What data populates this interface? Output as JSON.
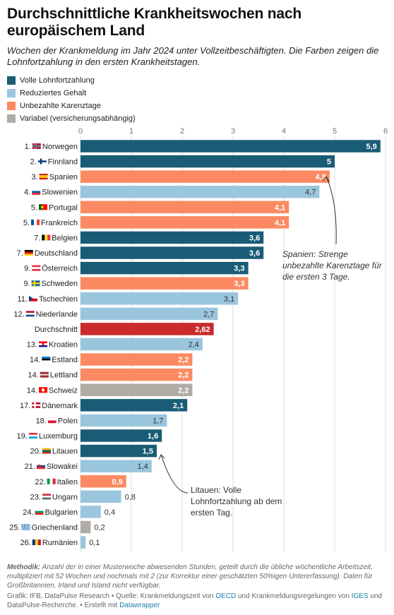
{
  "title": "Durchschnittliche Krankheitswochen nach europäischem Land",
  "subtitle": "Wochen der Krankmeldung im Jahr 2024 unter Vollzeitbeschäftigten. Die Farben zeigen die Lohnfortzahlung in den ersten Krankheitstagen.",
  "legend": [
    {
      "label": "Volle Lohnfortzahlung",
      "color": "#1a5c75"
    },
    {
      "label": "Reduziertes Gehalt",
      "color": "#9ac6dd"
    },
    {
      "label": "Unbezahlte Karenztage",
      "color": "#fb8a62"
    },
    {
      "label": "Variabel (versicherungsabhängig)",
      "color": "#b0aba5"
    }
  ],
  "chart_data": {
    "type": "bar",
    "orientation": "horizontal",
    "xlim": [
      0,
      6
    ],
    "x_ticks": [
      "0",
      "1",
      "2",
      "3",
      "4",
      "5",
      "6"
    ],
    "categories": [
      "1. Norwegen",
      "2. Finnland",
      "3. Spanien",
      "4. Slowenien",
      "5. Portugal",
      "5. Frankreich",
      "7. Belgien",
      "7. Deutschland",
      "9. Österreich",
      "9. Schweden",
      "11. Tschechien",
      "12. Niederlande",
      "Durchschnitt",
      "13. Kroatien",
      "14. Estland",
      "14. Lettland",
      "14. Schweiz",
      "17. Dänemark",
      "18. Polen",
      "19. Luxemburg",
      "20. Litauen",
      "21. Slowakei",
      "22. Italien",
      "23. Ungarn",
      "24. Bulgarien",
      "25. Griechenland",
      "26. Rumänien"
    ],
    "values": [
      5.9,
      5,
      4.9,
      4.7,
      4.1,
      4.1,
      3.6,
      3.6,
      3.3,
      3.3,
      3.1,
      2.7,
      2.62,
      2.4,
      2.2,
      2.2,
      2.2,
      2.1,
      1.7,
      1.6,
      1.5,
      1.4,
      0.9,
      0.8,
      0.4,
      0.2,
      0.1
    ],
    "value_labels": [
      "5,9",
      "5",
      "4,9",
      "4,7",
      "4,1",
      "4,1",
      "3,6",
      "3,6",
      "3,3",
      "3,3",
      "3,1",
      "2,7",
      "2,62",
      "2,4",
      "2,2",
      "2,2",
      "2,2",
      "2,1",
      "1,7",
      "1,6",
      "1,5",
      "1,4",
      "0,9",
      "0,8",
      "0,4",
      "0,2",
      "0,1"
    ],
    "pay_type": [
      "full",
      "full",
      "unpaid",
      "reduced",
      "unpaid",
      "unpaid",
      "full",
      "full",
      "full",
      "unpaid",
      "reduced",
      "reduced",
      "average",
      "reduced",
      "unpaid",
      "unpaid",
      "variable",
      "full",
      "reduced",
      "full",
      "full",
      "reduced",
      "unpaid",
      "reduced",
      "reduced",
      "variable",
      "reduced"
    ],
    "flags": [
      "norway",
      "finland",
      "spain",
      "slovenia",
      "portugal",
      "france",
      "belgium",
      "germany",
      "austria",
      "sweden",
      "czechia",
      "netherlands",
      "",
      "croatia",
      "estonia",
      "latvia",
      "switzerland",
      "denmark",
      "poland",
      "luxembourg",
      "lithuania",
      "slovakia",
      "italy",
      "hungary",
      "bulgaria",
      "greece",
      "romania"
    ],
    "colors": {
      "full": "#1a5c75",
      "reduced": "#9ac6dd",
      "unpaid": "#fb8a62",
      "variable": "#b0aba5",
      "average": "#c92a2a"
    },
    "grid": true,
    "annotations": [
      {
        "text": "Spanien: Strenge unbezahlte Karenztage für die ersten 3 Tage.",
        "target": "3. Spanien"
      },
      {
        "text": "Litauen: Volle Lohnfortzahlung ab dem ersten Tag.",
        "target": "20. Litauen"
      }
    ]
  },
  "footer": {
    "methodik_label": "Methodik:",
    "methodik_text": " Anzahl der in einer Musterwoche abwesenden Stunden, geteilt durch die übliche wöchentliche Arbeitszeit, multipliziert mit 52 Wochen und nochmals mit 2 (zur Korrektur einer geschätzten 50%igen Untererfassung). Daten für Großbritannien, Irland und Island nicht verfügbar.",
    "source_a": "Grafik: IFB, DataPulse Research • Quelle: Krankmeldungszeit von ",
    "source_link1": "OECD",
    "source_b": " und Krankmeldungsregelungen von ",
    "source_link2": "IGES",
    "source_c": " und DataPulse-Recherche. • Erstellt mit ",
    "source_link3": "Datawrapper"
  }
}
